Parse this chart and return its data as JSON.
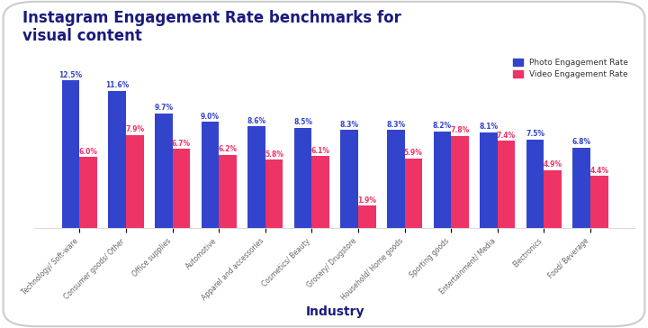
{
  "title": "Instagram Engagement Rate benchmarks for\nvisual content",
  "xlabel": "Industry",
  "categories": [
    "Technology/ Soft-ware",
    "Consumer goods/ Other",
    "Office supplies",
    "Automotive",
    "Apparel and accessories",
    "Cosmetics/ Beauty",
    "Grocery/ Drugstore",
    "Household/ Home goods",
    "Sporting goods",
    "Entertainment/ Media",
    "Electronics",
    "Food/ Beverage"
  ],
  "photo_values": [
    12.5,
    11.6,
    9.7,
    9.0,
    8.6,
    8.5,
    8.3,
    8.3,
    8.2,
    8.1,
    7.5,
    6.8
  ],
  "video_values": [
    6.0,
    7.9,
    6.7,
    6.2,
    5.8,
    6.1,
    1.9,
    5.9,
    7.8,
    7.4,
    4.9,
    4.4
  ],
  "photo_color": "#3344cc",
  "video_color": "#ee3366",
  "background_color": "#ffffff",
  "title_color": "#1a1a7e",
  "label_color_photo": "#3344cc",
  "label_color_video": "#ee3366",
  "bar_width": 0.38,
  "ylim": [
    0,
    15
  ],
  "legend_labels": [
    "Photo Engagement Rate",
    "Video Engagement Rate"
  ],
  "border_color": "#cccccc"
}
